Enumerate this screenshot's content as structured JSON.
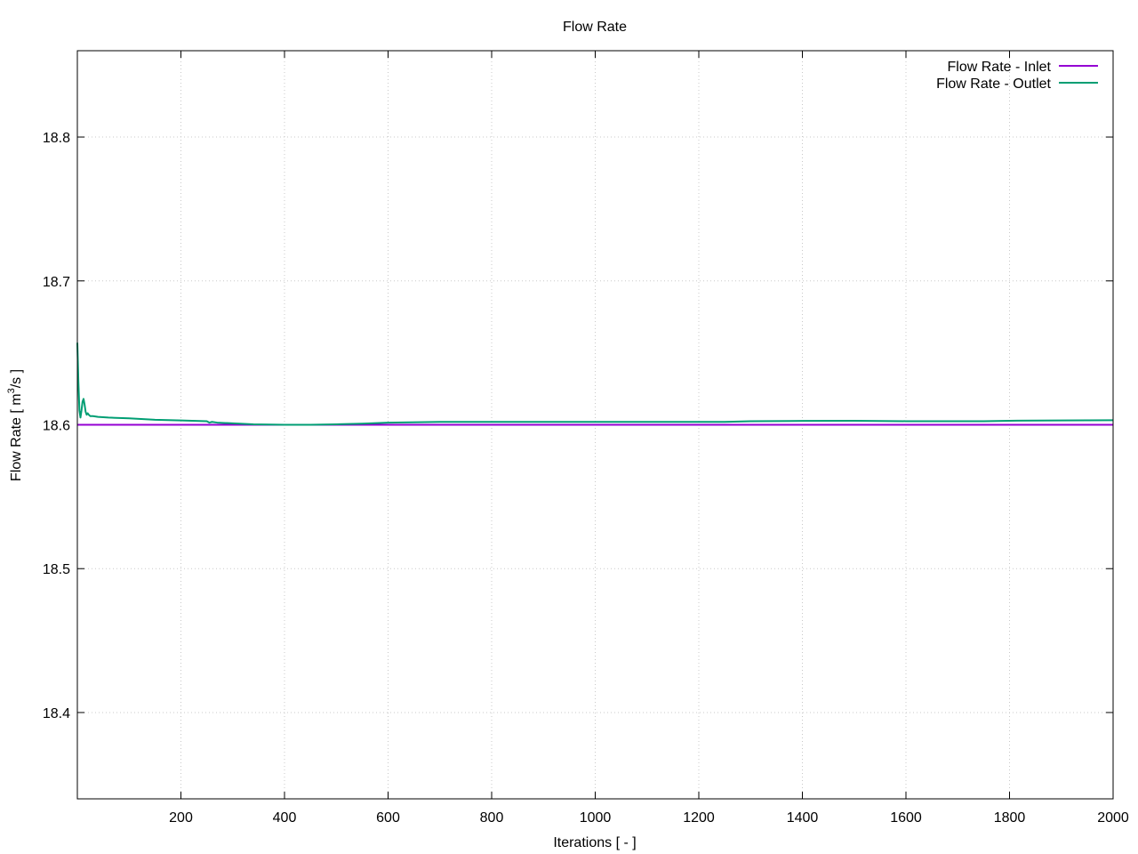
{
  "chart_data": {
    "type": "line",
    "title": "Flow Rate",
    "xlabel": "Iterations [ - ]",
    "ylabel": {
      "main": "Flow Rate [ m",
      "sup": "3",
      "tail": "/s ]"
    },
    "xlim": [
      0,
      2000
    ],
    "ylim": [
      18.34,
      18.86
    ],
    "x_ticks": [
      200,
      400,
      600,
      800,
      1000,
      1200,
      1400,
      1600,
      1800,
      2000
    ],
    "x_tick_labels": [
      "200",
      "400",
      "600",
      "800",
      "1000",
      "1200",
      "1400",
      "1600",
      "1800",
      "2000"
    ],
    "y_ticks": [
      18.4,
      18.5,
      18.6,
      18.7,
      18.8
    ],
    "y_tick_labels": [
      "18.4",
      "18.5",
      "18.6",
      "18.7",
      "18.8"
    ],
    "grid": true,
    "legend_position": "top-right",
    "series": [
      {
        "name": "Flow Rate - Inlet",
        "color": "#9400d3",
        "x": [
          0,
          2000
        ],
        "y": [
          18.6,
          18.6
        ]
      },
      {
        "name": "Flow Rate - Outlet",
        "color": "#009e73",
        "x": [
          0,
          2,
          4,
          6,
          8,
          10,
          12,
          14,
          16,
          18,
          20,
          22,
          25,
          30,
          40,
          60,
          100,
          150,
          200,
          250,
          255,
          260,
          270,
          300,
          340,
          400,
          450,
          500,
          550,
          600,
          700,
          800,
          900,
          1000,
          1100,
          1200,
          1250,
          1300,
          1400,
          1500,
          1600,
          1700,
          1750,
          1800,
          1900,
          2000
        ],
        "y": [
          18.657,
          18.63,
          18.61,
          18.605,
          18.61,
          18.616,
          18.618,
          18.614,
          18.609,
          18.607,
          18.608,
          18.607,
          18.606,
          18.606,
          18.6055,
          18.605,
          18.6045,
          18.6035,
          18.603,
          18.6025,
          18.6015,
          18.602,
          18.6015,
          18.601,
          18.6003,
          18.6,
          18.6,
          18.6003,
          18.6008,
          18.6015,
          18.602,
          18.602,
          18.602,
          18.602,
          18.602,
          18.602,
          18.602,
          18.6025,
          18.6027,
          18.6028,
          18.6025,
          18.6025,
          18.6025,
          18.6028,
          18.603,
          18.6032
        ]
      }
    ]
  }
}
